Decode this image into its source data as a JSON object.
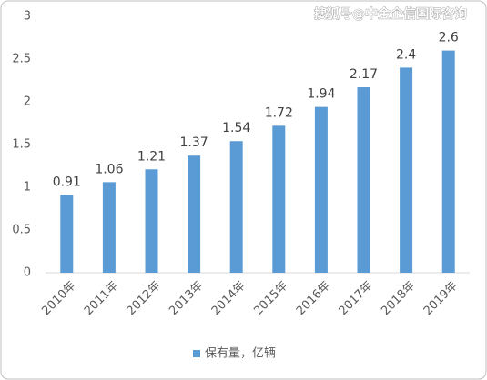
{
  "chart_data": {
    "type": "bar",
    "watermark": "搜狐号@中金企信国际咨询",
    "categories": [
      "2010年",
      "2011年",
      "2012年",
      "2013年",
      "2014年",
      "2015年",
      "2016年",
      "2017年",
      "2018年",
      "2019年"
    ],
    "series": [
      {
        "name": "保有量，亿辆",
        "color": "#5b9bd5",
        "values": [
          0.91,
          1.06,
          1.21,
          1.37,
          1.54,
          1.72,
          1.94,
          2.17,
          2.4,
          2.6
        ]
      }
    ],
    "ylim": [
      0,
      3
    ],
    "yticks": [
      0,
      0.5,
      1,
      1.5,
      2,
      2.5,
      3
    ],
    "grid": false,
    "legend": "bottom"
  }
}
